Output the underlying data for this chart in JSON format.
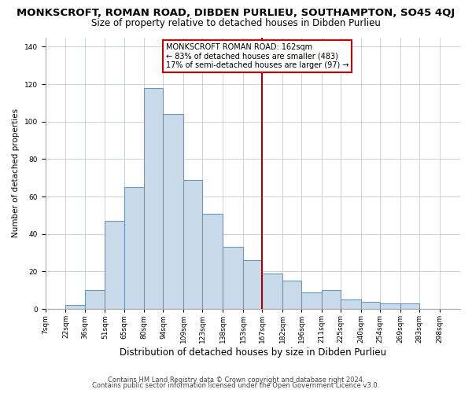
{
  "title": "MONKSCROFT, ROMAN ROAD, DIBDEN PURLIEU, SOUTHAMPTON, SO45 4QJ",
  "subtitle": "Size of property relative to detached houses in Dibden Purlieu",
  "xlabel": "Distribution of detached houses by size in Dibden Purlieu",
  "ylabel": "Number of detached properties",
  "bar_labels": [
    "7sqm",
    "22sqm",
    "36sqm",
    "51sqm",
    "65sqm",
    "80sqm",
    "94sqm",
    "109sqm",
    "123sqm",
    "138sqm",
    "153sqm",
    "167sqm",
    "182sqm",
    "196sqm",
    "211sqm",
    "225sqm",
    "240sqm",
    "254sqm",
    "269sqm",
    "283sqm",
    "298sqm"
  ],
  "bar_values": [
    0,
    2,
    10,
    47,
    65,
    118,
    104,
    69,
    51,
    33,
    26,
    19,
    15,
    9,
    10,
    5,
    4,
    3,
    3,
    0,
    0
  ],
  "bar_color": "#c9daea",
  "bar_edge_color": "#6699bb",
  "vline_x_index": 11,
  "property_line_label": "MONKSCROFT ROMAN ROAD: 162sqm",
  "annotation_line1": "← 83% of detached houses are smaller (483)",
  "annotation_line2": "17% of semi-detached houses are larger (97) →",
  "annotation_box_color": "#ffffff",
  "annotation_box_edge": "#cc0000",
  "vline_color": "#aa0000",
  "ylim": [
    0,
    145
  ],
  "yticks": [
    0,
    20,
    40,
    60,
    80,
    100,
    120,
    140
  ],
  "grid_color": "#c0ccd8",
  "footer1": "Contains HM Land Registry data © Crown copyright and database right 2024.",
  "footer2": "Contains public sector information licensed under the Open Government Licence v3.0.",
  "title_fontsize": 9.5,
  "subtitle_fontsize": 8.5,
  "xlabel_fontsize": 8.5,
  "ylabel_fontsize": 7.5,
  "tick_fontsize": 6.5,
  "annot_fontsize": 7,
  "footer_fontsize": 6,
  "bin_edges": [
    7,
    22,
    36,
    51,
    65,
    80,
    94,
    109,
    123,
    138,
    153,
    167,
    182,
    196,
    211,
    225,
    240,
    254,
    269,
    283,
    298,
    313
  ]
}
